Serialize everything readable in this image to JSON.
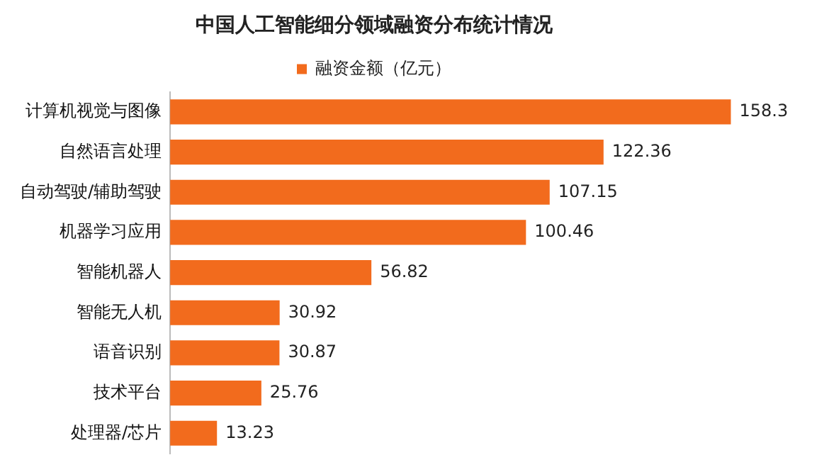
{
  "chart_data": {
    "type": "bar",
    "orientation": "horizontal",
    "title": "中国人工智能细分领域融资分布统计情况",
    "categories": [
      "计算机视觉与图像",
      "自然语言处理",
      "自动驾驶/辅助驾驶",
      "机器学习应用",
      "智能机器人",
      "智能无人机",
      "语音识别",
      "技术平台",
      "处理器/芯片"
    ],
    "series": [
      {
        "name": "融资金额（亿元）",
        "color": "#f26b1d",
        "values": [
          158.3,
          122.36,
          107.15,
          100.46,
          56.82,
          30.92,
          30.87,
          25.76,
          13.23
        ]
      }
    ],
    "tick_labels": "y",
    "legend": "top",
    "data_labels": true
  }
}
